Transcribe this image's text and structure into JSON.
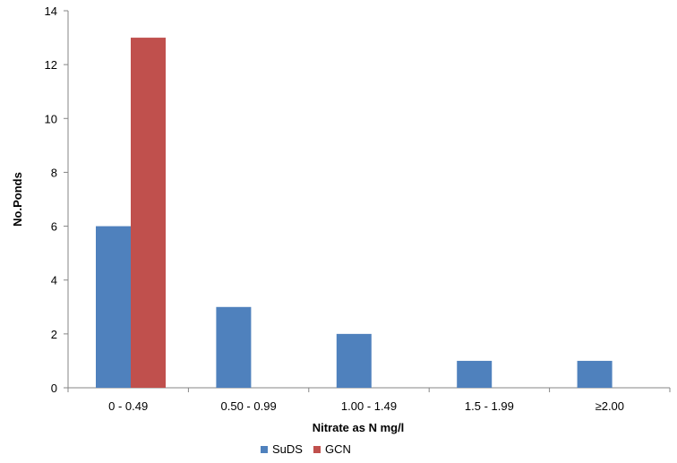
{
  "chart_data": {
    "type": "bar",
    "title": "",
    "xlabel": "Nitrate as N mg/l",
    "ylabel": "No.Ponds",
    "categories": [
      "0 - 0.49",
      "0.50 - 0.99",
      "1.00 - 1.49",
      "1.5 - 1.99",
      "≥2.00"
    ],
    "series": [
      {
        "name": "SuDS",
        "values": [
          6,
          3,
          2,
          1,
          1
        ],
        "color": "#4f81bd"
      },
      {
        "name": "GCN",
        "values": [
          13,
          0,
          0,
          0,
          0
        ],
        "color": "#c0504d"
      }
    ],
    "ylim": [
      0,
      14
    ],
    "yticks": [
      0,
      2,
      4,
      6,
      8,
      10,
      12,
      14
    ],
    "grid": false,
    "legend": "bottom"
  }
}
